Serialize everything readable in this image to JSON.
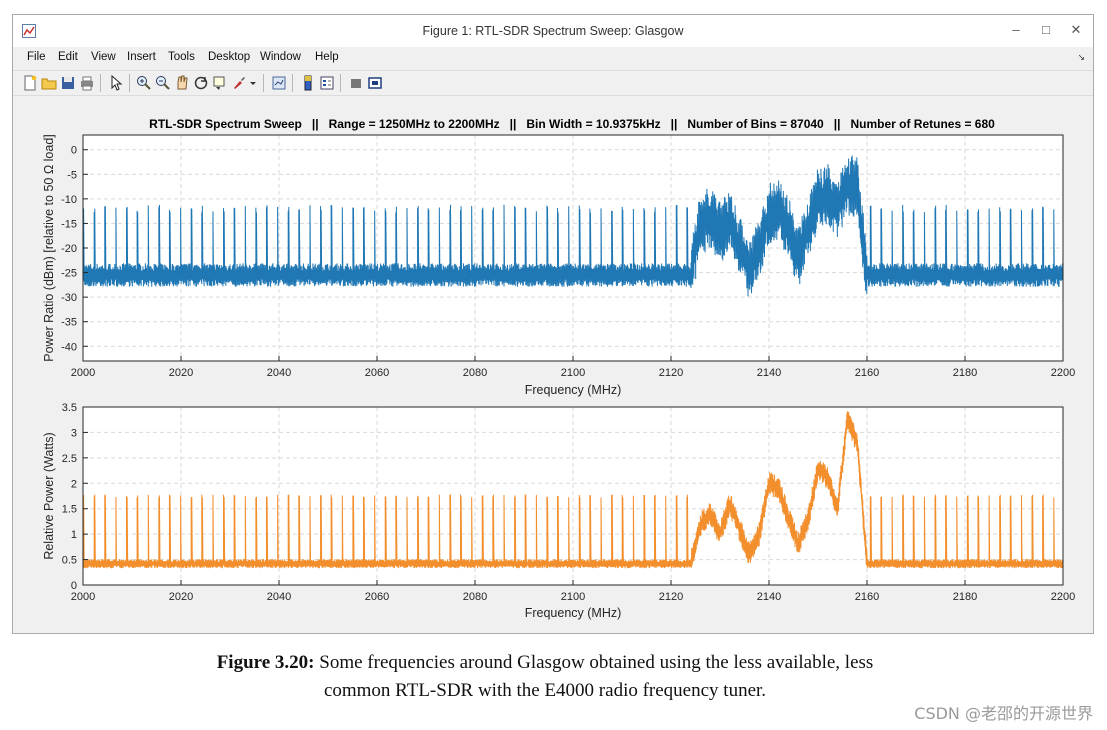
{
  "window": {
    "title": "Figure 1: RTL-SDR Spectrum Sweep: Glasgow",
    "controls": {
      "minimize": "–",
      "maximize": "□",
      "close": "✕"
    }
  },
  "menu": {
    "items": [
      "File",
      "Edit",
      "View",
      "Insert",
      "Tools",
      "Desktop",
      "Window",
      "Help"
    ],
    "arrow": "↘"
  },
  "toolbar": {
    "icons": [
      "new-figure-icon",
      "open-file-icon",
      "save-icon",
      "print-icon",
      "pointer-icon",
      "zoom-in-icon",
      "zoom-out-icon",
      "pan-icon",
      "rotate-icon",
      "data-cursor-icon",
      "brush-icon",
      "link-icon",
      "colorbar-icon",
      "legend-icon",
      "hide-plot-tools-icon",
      "show-plot-tools-icon"
    ]
  },
  "chart_data": [
    {
      "type": "line",
      "title": "RTL-SDR Spectrum Sweep   ||   Range = 1250MHz to 2200MHz   ||   Bin Width = 10.9375kHz   ||   Number of Bins = 87040   ||   Number of Retunes = 680",
      "xlabel": "Frequency (MHz)",
      "ylabel": "Power Ratio (dBm)  [relative to 50 Ω load]",
      "xlim": [
        2000,
        2200
      ],
      "ylim": [
        -43,
        3
      ],
      "xticks": [
        2000,
        2020,
        2040,
        2060,
        2080,
        2100,
        2120,
        2140,
        2160,
        2180,
        2200
      ],
      "yticks": [
        0,
        -5,
        -10,
        -15,
        -20,
        -25,
        -30,
        -35,
        -40
      ],
      "grid": true,
      "color": "#1f77b4",
      "series": [
        {
          "name": "power_dbm",
          "noise_floor": -25.5,
          "spike_level": -12,
          "spike_spacing_mhz": 2.2,
          "envelope": [
            [
              2000,
              -25.5
            ],
            [
              2124,
              -25.5
            ],
            [
              2126,
              -15
            ],
            [
              2128,
              -14
            ],
            [
              2130,
              -17
            ],
            [
              2132,
              -14
            ],
            [
              2134,
              -20
            ],
            [
              2136,
              -24
            ],
            [
              2138,
              -20
            ],
            [
              2140,
              -13
            ],
            [
              2142,
              -12
            ],
            [
              2144,
              -16
            ],
            [
              2146,
              -22
            ],
            [
              2148,
              -16
            ],
            [
              2150,
              -10
            ],
            [
              2152,
              -9
            ],
            [
              2154,
              -12
            ],
            [
              2156,
              -7
            ],
            [
              2158,
              -8
            ],
            [
              2160,
              -25.5
            ],
            [
              2200,
              -25.5
            ]
          ]
        }
      ]
    },
    {
      "type": "line",
      "title": "",
      "xlabel": "Frequency (MHz)",
      "ylabel": "Relative Power (Watts)",
      "xlim": [
        2000,
        2200
      ],
      "ylim": [
        0,
        3.5
      ],
      "xticks": [
        2000,
        2020,
        2040,
        2060,
        2080,
        2100,
        2120,
        2140,
        2160,
        2180,
        2200
      ],
      "yticks": [
        3.5,
        3,
        2.5,
        2,
        1.5,
        1,
        0.5,
        0
      ],
      "grid": true,
      "color": "#f28e2b",
      "series": [
        {
          "name": "power_watts",
          "noise_floor": 0.42,
          "spike_level": 1.75,
          "spike_spacing_mhz": 2.2,
          "envelope": [
            [
              2000,
              0.42
            ],
            [
              2124,
              0.42
            ],
            [
              2126,
              1.2
            ],
            [
              2128,
              1.4
            ],
            [
              2130,
              1.0
            ],
            [
              2132,
              1.6
            ],
            [
              2134,
              1.1
            ],
            [
              2136,
              0.6
            ],
            [
              2138,
              1.0
            ],
            [
              2140,
              2.0
            ],
            [
              2142,
              1.9
            ],
            [
              2144,
              1.3
            ],
            [
              2146,
              0.8
            ],
            [
              2148,
              1.3
            ],
            [
              2150,
              2.3
            ],
            [
              2152,
              2.1
            ],
            [
              2154,
              1.5
            ],
            [
              2156,
              3.3
            ],
            [
              2158,
              2.8
            ],
            [
              2160,
              0.42
            ],
            [
              2200,
              0.42
            ]
          ]
        }
      ]
    }
  ],
  "caption": {
    "label": "Figure 3.20:",
    "line1": " Some frequencies around Glasgow obtained using the less available, less",
    "line2": "common RTL-SDR with the E4000 radio frequency tuner."
  },
  "watermark": "CSDN @老邵的开源世界"
}
